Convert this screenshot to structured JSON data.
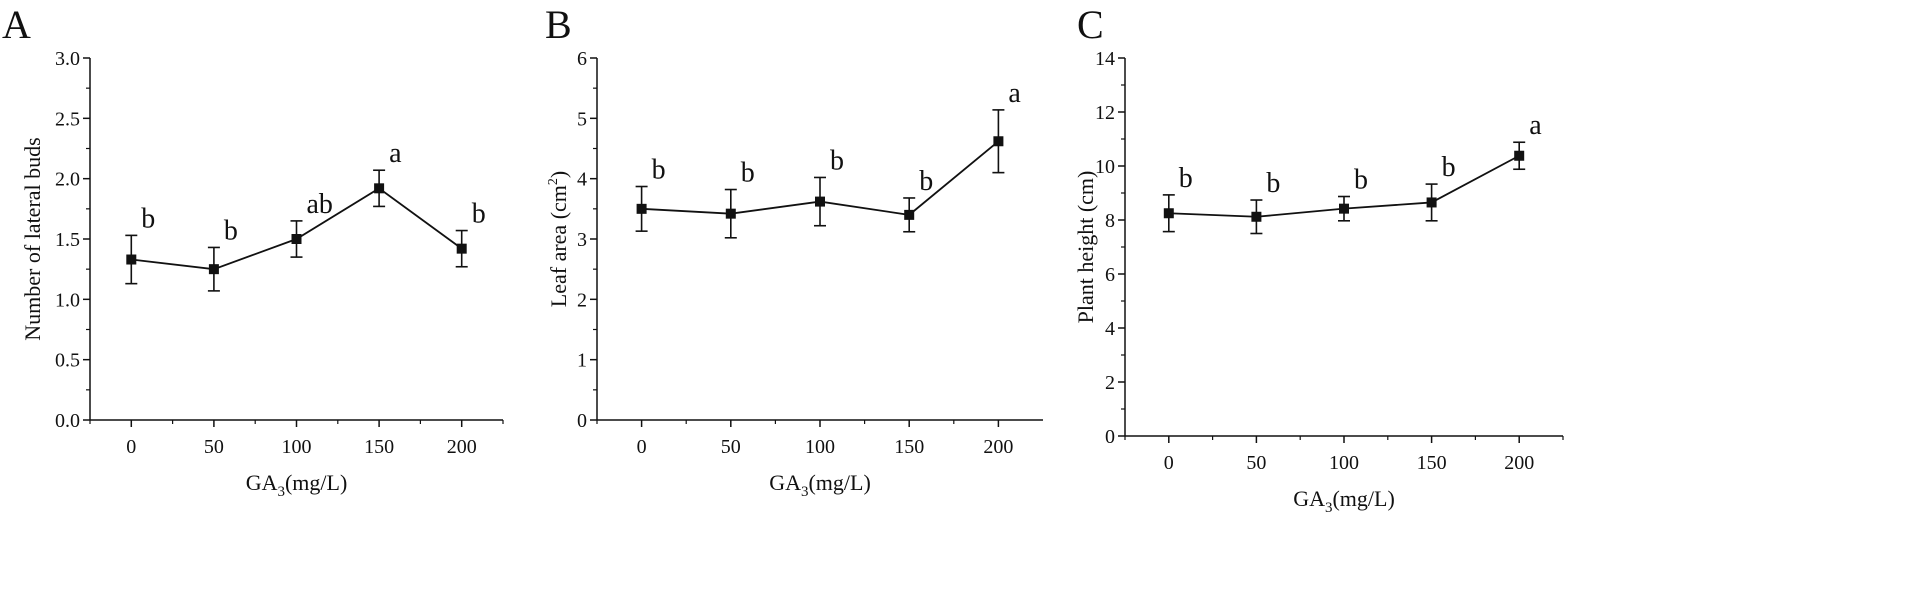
{
  "chart_data": [
    {
      "type": "line",
      "panel_label": "A",
      "categories": [
        0,
        50,
        100,
        150,
        200
      ],
      "values": [
        1.33,
        1.25,
        1.5,
        1.92,
        1.42
      ],
      "errors": [
        0.2,
        0.18,
        0.15,
        0.15,
        0.15
      ],
      "significance": [
        "b",
        "b",
        "ab",
        "a",
        "b"
      ],
      "xlabel": {
        "main": "GA",
        "sub": "3",
        "rest": "(mg/L)"
      },
      "ylabel": "Number of lateral buds",
      "ylim": [
        0,
        3.0
      ],
      "yticks": [
        "0.0",
        "0.5",
        "1.0",
        "1.5",
        "2.0",
        "2.5",
        "3.0"
      ],
      "ytick_values": [
        0,
        0.5,
        1.0,
        1.5,
        2.0,
        2.5,
        3.0
      ],
      "xticks": [
        "0",
        "50",
        "100",
        "150",
        "200"
      ]
    },
    {
      "type": "line",
      "panel_label": "B",
      "categories": [
        0,
        50,
        100,
        150,
        200
      ],
      "values": [
        3.5,
        3.42,
        3.62,
        3.4,
        4.62
      ],
      "errors": [
        0.37,
        0.4,
        0.4,
        0.28,
        0.52
      ],
      "significance": [
        "b",
        "b",
        "b",
        "b",
        "a"
      ],
      "xlabel": {
        "main": "GA",
        "sub": "3",
        "rest": "(mg/L)"
      },
      "ylabel": "Leaf area (cm",
      "ylabel_sup": "2",
      "ylabel_end": ")",
      "ylim": [
        0,
        6
      ],
      "yticks": [
        "0",
        "1",
        "2",
        "3",
        "4",
        "5",
        "6"
      ],
      "ytick_values": [
        0,
        1,
        2,
        3,
        4,
        5,
        6
      ],
      "xticks": [
        "0",
        "50",
        "100",
        "150",
        "200"
      ]
    },
    {
      "type": "line",
      "panel_label": "C",
      "categories": [
        0,
        50,
        100,
        150,
        200
      ],
      "values": [
        8.25,
        8.12,
        8.42,
        8.65,
        10.38
      ],
      "errors": [
        0.68,
        0.62,
        0.45,
        0.68,
        0.5
      ],
      "significance": [
        "b",
        "b",
        "b",
        "b",
        "a"
      ],
      "xlabel": {
        "main": "GA",
        "sub": "3",
        "rest": "(mg/L)"
      },
      "ylabel": "Plant height (cm)",
      "ylim": [
        0,
        14
      ],
      "yticks": [
        "0",
        "2",
        "4",
        "6",
        "8",
        "10",
        "12",
        "14"
      ],
      "ytick_values": [
        0,
        2,
        4,
        6,
        8,
        10,
        12,
        14
      ],
      "xticks": [
        "0",
        "50",
        "100",
        "150",
        "200"
      ]
    }
  ]
}
